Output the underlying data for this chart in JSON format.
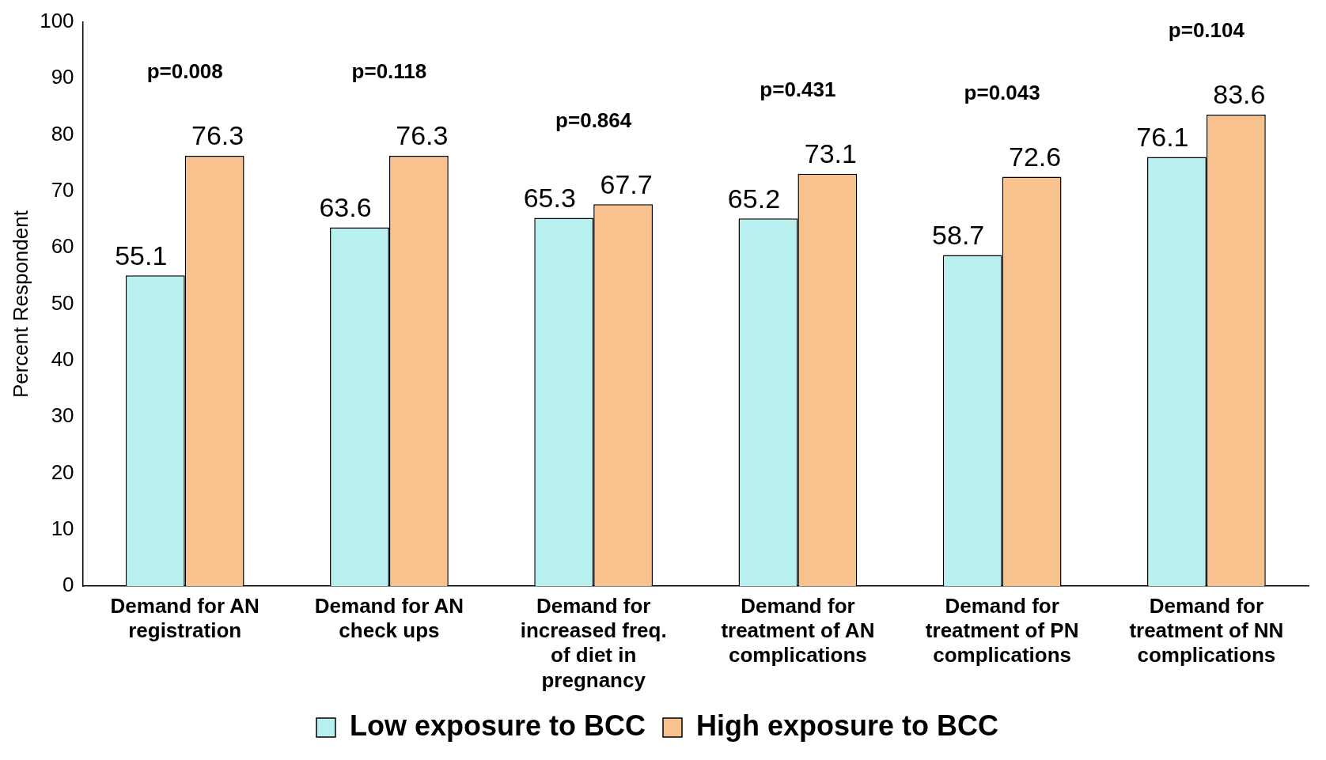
{
  "chart_data": {
    "type": "bar",
    "ylabel": "Percent Respondent",
    "categories": [
      "Demand for AN registration",
      "Demand for AN check ups",
      "Demand for increased freq. of diet in pregnancy",
      "Demand for treatment of AN complications",
      "Demand for treatment of PN complications",
      "Demand for treatment of NN complications"
    ],
    "series": [
      {
        "name": "Low exposure to BCC",
        "color": "#b8f0f0",
        "values": [
          55.1,
          63.6,
          65.3,
          65.2,
          58.7,
          76.1
        ]
      },
      {
        "name": "High exposure to BCC",
        "color": "#f7c28e",
        "values": [
          76.3,
          76.3,
          67.7,
          73.1,
          72.6,
          83.6
        ]
      }
    ],
    "ylim": [
      0,
      100
    ],
    "yticks": [
      0,
      10,
      20,
      30,
      40,
      50,
      60,
      70,
      80,
      90,
      100
    ],
    "grid": false,
    "legend": "bottom",
    "data_labels": true,
    "annotations": [
      "p=0.008",
      "p=0.118",
      "p=0.864",
      "p=0.431",
      "p=0.043",
      "p=0.104"
    ]
  }
}
